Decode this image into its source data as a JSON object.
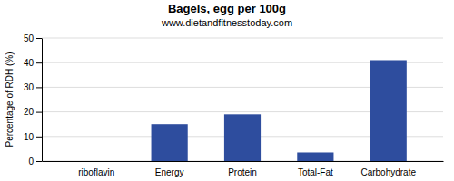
{
  "chart_data": {
    "type": "bar",
    "title": "Bagels, egg per 100g",
    "subtitle": "www.dietandfitnesstoday.com",
    "categories": [
      "riboflavin",
      "Energy",
      "Protein",
      "Total-Fat",
      "Carbohydrate"
    ],
    "values": [
      0,
      15,
      19,
      3.5,
      41
    ],
    "color": "#2e4d9e",
    "ylabel": "Percentage of RDH (%)",
    "ylim": [
      0,
      50
    ],
    "yticks": [
      0,
      10,
      20,
      30,
      40,
      50
    ],
    "grid": true
  }
}
